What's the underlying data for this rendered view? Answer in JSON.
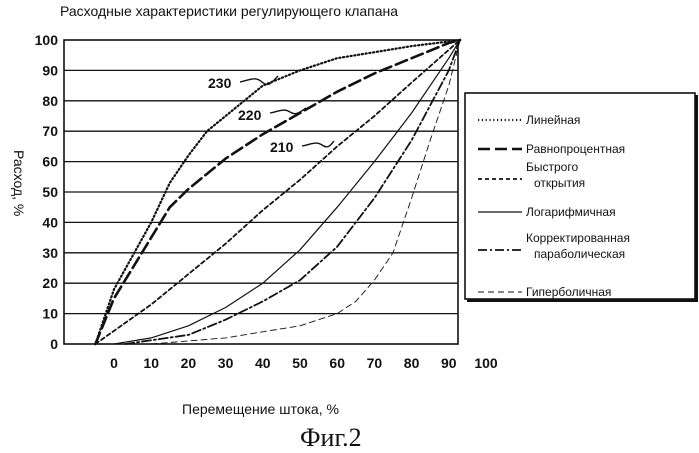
{
  "chart_data": {
    "type": "line",
    "title": "Расходные характеристики регулирующего клапана",
    "xlabel": "Перемещение штока, %",
    "ylabel": "Расход, %",
    "xlim": [
      0,
      100
    ],
    "ylim": [
      0,
      100
    ],
    "xticks": [
      "0",
      "10",
      "20",
      "30",
      "40",
      "50",
      "60",
      "70",
      "80",
      "90",
      "100"
    ],
    "yticks": [
      "0",
      "10",
      "20",
      "30",
      "40",
      "50",
      "60",
      "70",
      "80",
      "90",
      "100"
    ],
    "grid": "horizontal",
    "legend_position": "right",
    "series": [
      {
        "name": "Линейная",
        "style": "dotted",
        "points": [
          [
            -5,
            0
          ],
          [
            0,
            18
          ],
          [
            5,
            29
          ],
          [
            10,
            40
          ],
          [
            15,
            53
          ],
          [
            20,
            62
          ],
          [
            25,
            70
          ],
          [
            30,
            75
          ],
          [
            40,
            85
          ],
          [
            50,
            90
          ],
          [
            60,
            94
          ],
          [
            70,
            96
          ],
          [
            80,
            98
          ],
          [
            90,
            99.5
          ],
          [
            93,
            100
          ]
        ]
      },
      {
        "name": "Равнопроцентная",
        "style": "long-dash",
        "points": [
          [
            -5,
            0
          ],
          [
            0,
            15
          ],
          [
            5,
            25
          ],
          [
            10,
            35
          ],
          [
            15,
            45
          ],
          [
            20,
            51
          ],
          [
            30,
            61
          ],
          [
            40,
            69
          ],
          [
            50,
            76
          ],
          [
            60,
            83
          ],
          [
            70,
            89
          ],
          [
            80,
            94
          ],
          [
            90,
            99
          ],
          [
            93,
            100
          ]
        ]
      },
      {
        "name": "Быстрого открытия",
        "style": "short-dash",
        "points": [
          [
            -5,
            0
          ],
          [
            10,
            13
          ],
          [
            20,
            23
          ],
          [
            30,
            33
          ],
          [
            40,
            44
          ],
          [
            50,
            54
          ],
          [
            60,
            65
          ],
          [
            70,
            75
          ],
          [
            80,
            86
          ],
          [
            93,
            100
          ]
        ]
      },
      {
        "name": "Логарифмичная",
        "style": "solid",
        "points": [
          [
            0,
            0
          ],
          [
            10,
            2
          ],
          [
            20,
            6
          ],
          [
            30,
            12
          ],
          [
            40,
            20
          ],
          [
            50,
            31
          ],
          [
            60,
            45
          ],
          [
            70,
            60
          ],
          [
            80,
            76
          ],
          [
            90,
            94
          ],
          [
            93,
            100
          ]
        ]
      },
      {
        "name": "Корректированная параболическая",
        "style": "dash-dot",
        "points": [
          [
            3,
            0
          ],
          [
            20,
            3
          ],
          [
            30,
            8
          ],
          [
            40,
            14
          ],
          [
            50,
            21
          ],
          [
            60,
            32
          ],
          [
            70,
            48
          ],
          [
            80,
            67
          ],
          [
            90,
            90
          ],
          [
            93,
            100
          ]
        ]
      },
      {
        "name": "Гиперболичная",
        "style": "fine-dash",
        "points": [
          [
            10,
            0
          ],
          [
            30,
            2
          ],
          [
            40,
            4
          ],
          [
            50,
            6
          ],
          [
            60,
            10
          ],
          [
            65,
            14
          ],
          [
            70,
            21
          ],
          [
            75,
            30
          ],
          [
            80,
            48
          ],
          [
            85,
            67
          ],
          [
            90,
            85
          ],
          [
            93,
            100
          ]
        ]
      }
    ],
    "annotations": [
      {
        "text": "230",
        "series": "Линейная"
      },
      {
        "text": "220",
        "series": "Равнопроцентная"
      },
      {
        "text": "210",
        "series": "Быстрого открытия"
      }
    ]
  },
  "figure_caption": "Фиг.2"
}
